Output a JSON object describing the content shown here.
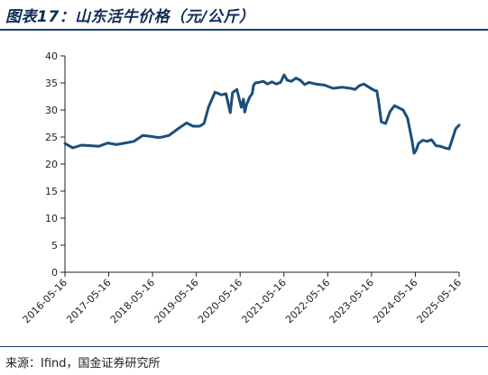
{
  "figure": {
    "title": "图表17：山东活牛价格（元/公斤）",
    "source": "来源：Ifind，国金证券研究所"
  },
  "chart_data": {
    "type": "line",
    "title": "图表17：山东活牛价格（元/公斤）",
    "xlabel": "",
    "ylabel": "",
    "ylim": [
      0,
      40
    ],
    "yticks": [
      0,
      5,
      10,
      15,
      20,
      25,
      30,
      35,
      40
    ],
    "x_ticks": [
      "2016-05-16",
      "2017-05-16",
      "2018-05-16",
      "2019-05-16",
      "2020-05-16",
      "2021-05-16",
      "2022-05-16",
      "2023-05-16",
      "2024-05-16",
      "2025-05-16"
    ],
    "grid": false,
    "legend": "none",
    "line_color": "#1b4f7a",
    "series": [
      {
        "x": [
          2016.37,
          2016.55,
          2016.75,
          2016.95,
          2017.15,
          2017.35,
          2017.55,
          2017.75,
          2017.95,
          2018.15,
          2018.35,
          2018.5,
          2018.6,
          2018.75,
          2018.95,
          2019.15,
          2019.3,
          2019.45,
          2019.55,
          2019.65,
          2019.8,
          2019.95,
          2020.05,
          2020.15,
          2020.2,
          2020.3,
          2020.4,
          2020.45,
          2020.48,
          2020.52,
          2020.6,
          2020.65,
          2020.68,
          2020.72,
          2020.8,
          2020.9,
          2021.0,
          2021.1,
          2021.2,
          2021.3,
          2021.38,
          2021.45,
          2021.55,
          2021.65,
          2021.75,
          2021.85,
          2021.95,
          2022.1,
          2022.3,
          2022.5,
          2022.7,
          2022.9,
          2023.0,
          2023.1,
          2023.2,
          2023.3,
          2023.4,
          2023.45,
          2023.5,
          2023.55,
          2023.6,
          2023.7,
          2023.8,
          2023.9,
          2024.0,
          2024.1,
          2024.2,
          2024.3,
          2024.35,
          2024.4,
          2024.45,
          2024.55,
          2024.65,
          2024.75,
          2024.85,
          2024.95,
          2025.05,
          2025.15,
          2025.2,
          2025.3,
          2025.38
        ],
        "values": [
          23.8,
          23.0,
          23.5,
          23.4,
          23.3,
          23.9,
          23.6,
          23.9,
          24.2,
          25.3,
          25.1,
          24.9,
          25.0,
          25.3,
          26.5,
          27.6,
          27.0,
          27.0,
          27.5,
          30.5,
          33.3,
          32.8,
          33.0,
          29.5,
          33.2,
          33.8,
          30.5,
          32.0,
          29.6,
          31.0,
          32.5,
          33.0,
          34.5,
          35.0,
          35.1,
          35.3,
          34.8,
          35.2,
          34.8,
          35.1,
          36.5,
          35.5,
          35.3,
          35.9,
          35.5,
          34.7,
          35.1,
          34.8,
          34.6,
          34.0,
          34.2,
          34.0,
          33.8,
          34.5,
          34.8,
          34.3,
          33.8,
          33.6,
          33.5,
          31.0,
          27.8,
          27.5,
          29.7,
          30.8,
          30.4,
          30.0,
          28.5,
          24.5,
          22.0,
          22.6,
          23.8,
          24.4,
          24.2,
          24.5,
          23.4,
          23.3,
          23.0,
          22.8,
          24.0,
          26.5,
          27.2
        ]
      }
    ]
  }
}
